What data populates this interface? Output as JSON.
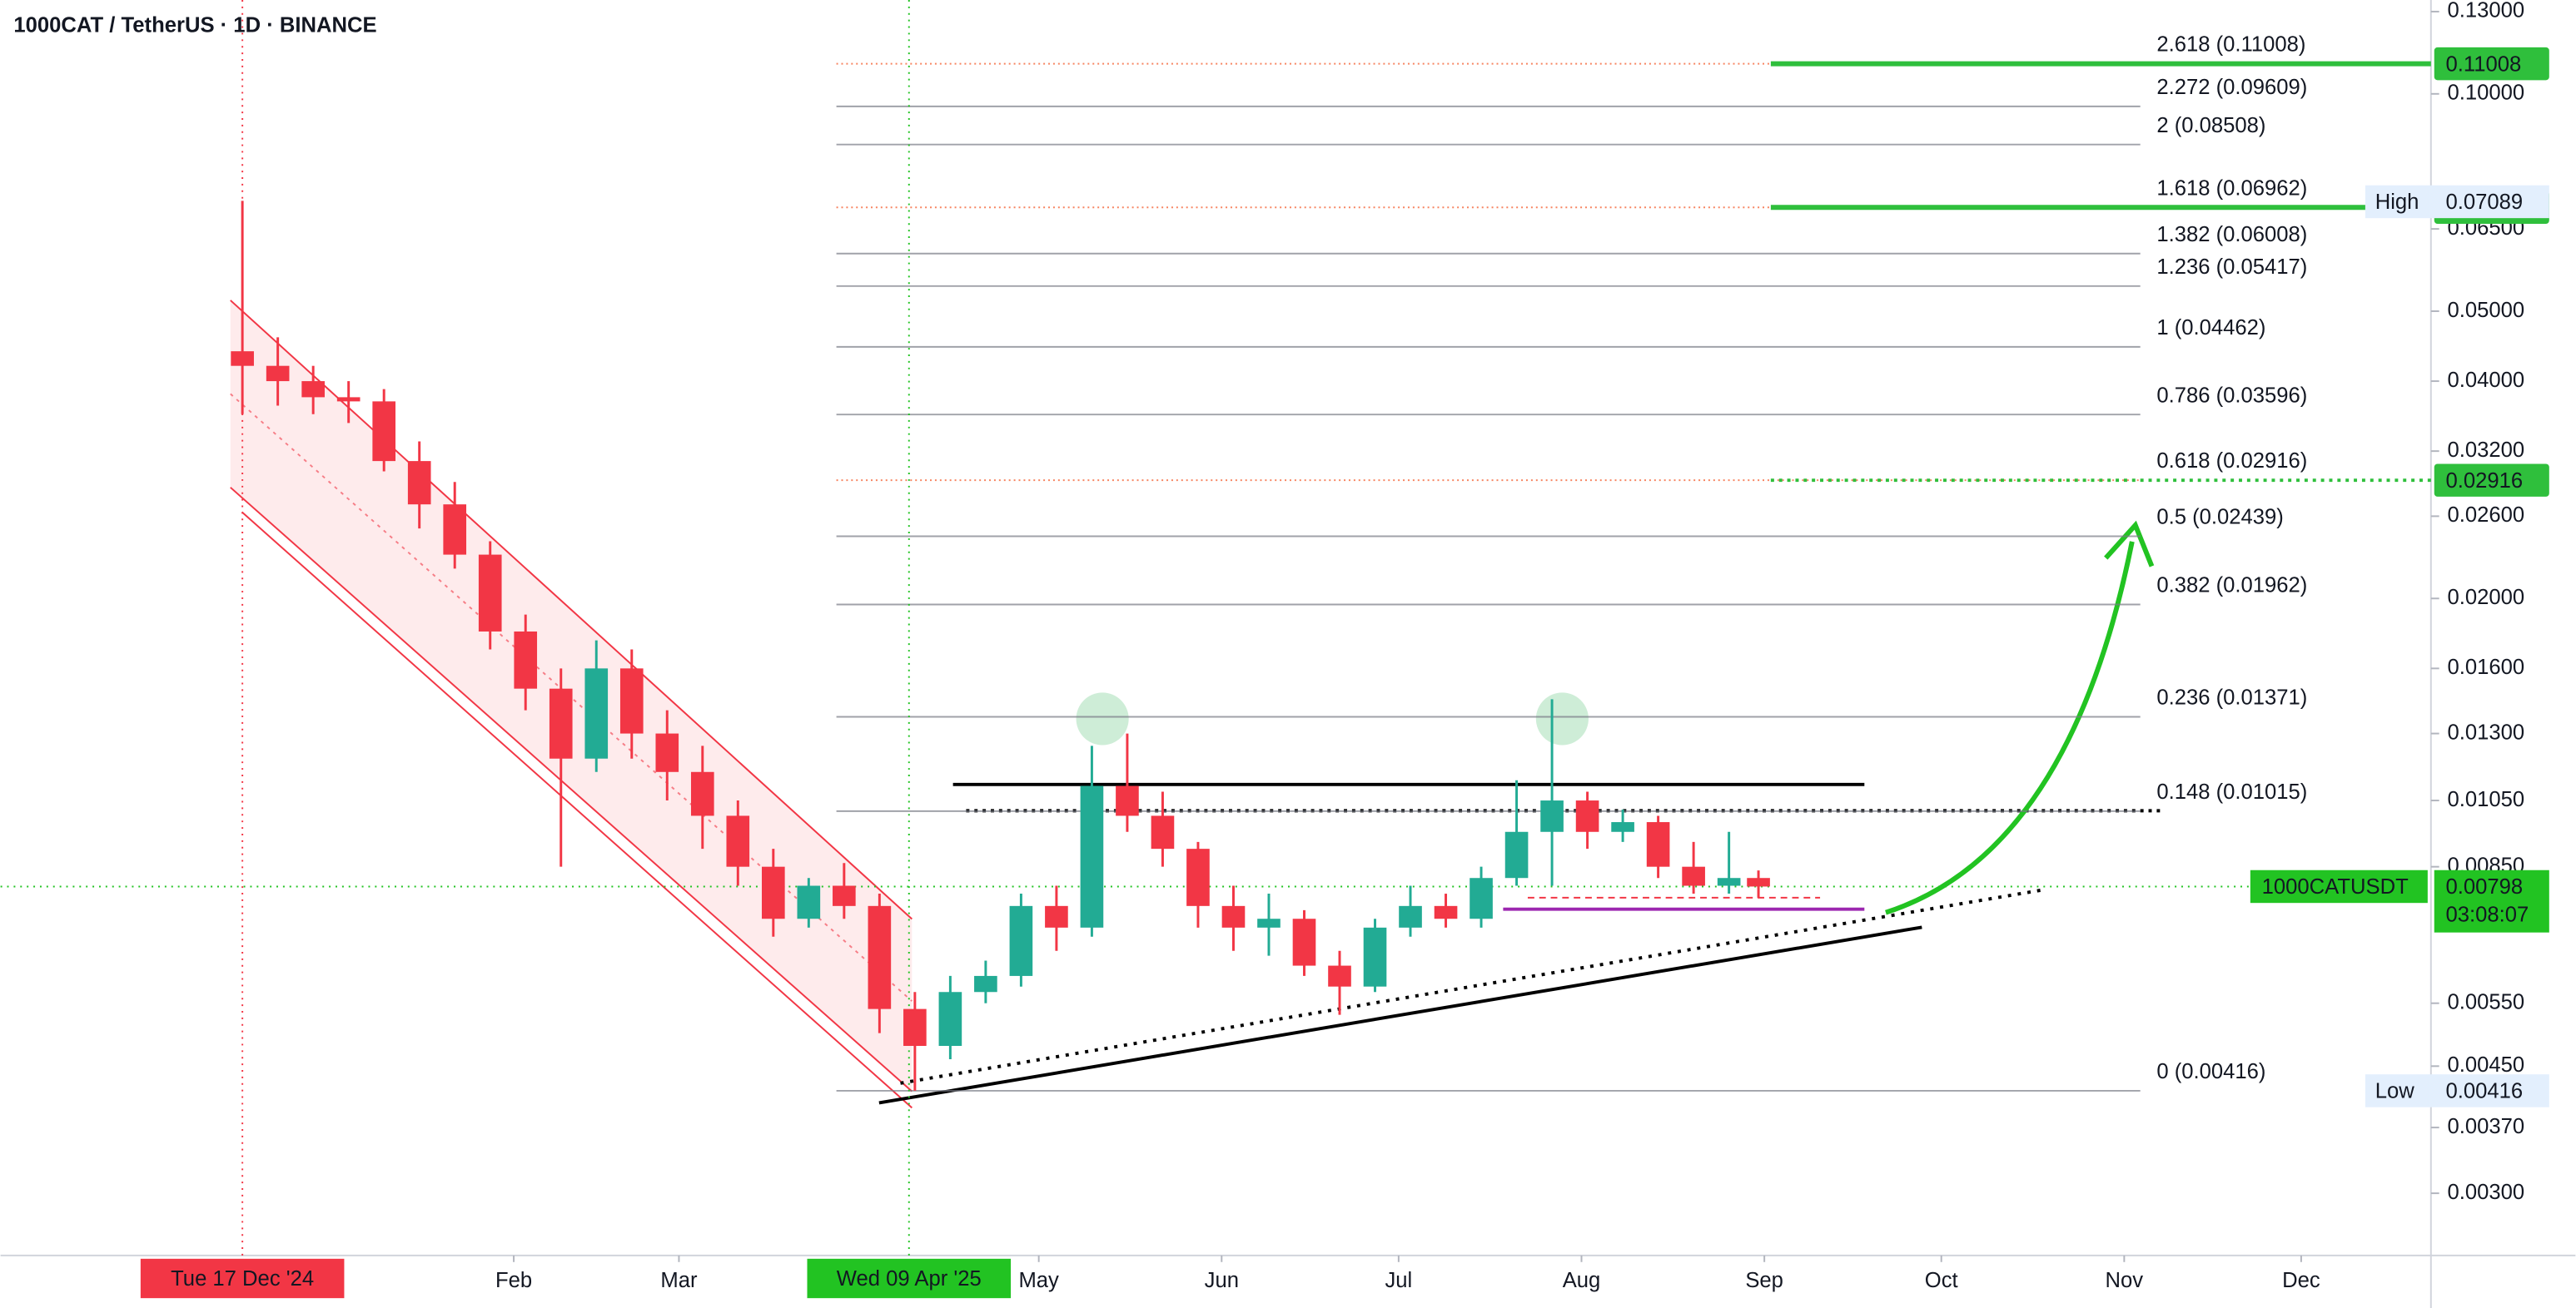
{
  "chart_data": {
    "type": "candlestick",
    "title": "1000CAT / TetherUS · 1D · BINANCE",
    "log_scale": true,
    "up_color": "#22ab94",
    "down_color": "#f23645",
    "xlim": [
      "2024-11-06",
      "2025-12-23"
    ],
    "ylim": [
      0.00246,
      0.1349
    ],
    "yticks": [
      {
        "value": 0.13,
        "label": "0.13000"
      },
      {
        "value": 0.1,
        "label": "0.10000"
      },
      {
        "value": 0.065,
        "label": "0.06500"
      },
      {
        "value": 0.05,
        "label": "0.05000"
      },
      {
        "value": 0.04,
        "label": "0.04000"
      },
      {
        "value": 0.032,
        "label": "0.03200"
      },
      {
        "value": 0.026,
        "label": "0.02600"
      },
      {
        "value": 0.02,
        "label": "0.02000"
      },
      {
        "value": 0.016,
        "label": "0.01600"
      },
      {
        "value": 0.013,
        "label": "0.01300"
      },
      {
        "value": 0.0105,
        "label": "0.01050"
      },
      {
        "value": 0.0085,
        "label": "0.00850"
      },
      {
        "value": 0.0055,
        "label": "0.00550"
      },
      {
        "value": 0.0045,
        "label": "0.00450"
      },
      {
        "value": 0.0037,
        "label": "0.00370"
      },
      {
        "value": 0.003,
        "label": "0.00300"
      }
    ],
    "xticks": [
      {
        "value": "2025-02-01",
        "label": "Feb"
      },
      {
        "value": "2025-03-01",
        "label": "Mar"
      },
      {
        "value": "2025-05-01",
        "label": "May"
      },
      {
        "value": "2025-06-01",
        "label": "Jun"
      },
      {
        "value": "2025-07-01",
        "label": "Jul"
      },
      {
        "value": "2025-08-01",
        "label": "Aug"
      },
      {
        "value": "2025-09-01",
        "label": "Sep"
      },
      {
        "value": "2025-10-01",
        "label": "Oct"
      },
      {
        "value": "2025-11-01",
        "label": "Nov"
      },
      {
        "value": "2025-12-01",
        "label": "Dec"
      }
    ],
    "x": [
      "2024-12-17",
      "2024-12-23",
      "2024-12-29",
      "2025-01-04",
      "2025-01-10",
      "2025-01-16",
      "2025-01-22",
      "2025-01-28",
      "2025-02-03",
      "2025-02-09",
      "2025-02-15",
      "2025-02-21",
      "2025-02-27",
      "2025-03-05",
      "2025-03-11",
      "2025-03-17",
      "2025-03-23",
      "2025-03-29",
      "2025-04-04",
      "2025-04-10",
      "2025-04-16",
      "2025-04-22",
      "2025-04-28",
      "2025-05-04",
      "2025-05-10",
      "2025-05-16",
      "2025-05-22",
      "2025-05-28",
      "2025-06-03",
      "2025-06-09",
      "2025-06-15",
      "2025-06-21",
      "2025-06-27",
      "2025-07-03",
      "2025-07-09",
      "2025-07-15",
      "2025-07-21",
      "2025-07-27",
      "2025-08-02",
      "2025-08-08",
      "2025-08-14",
      "2025-08-20",
      "2025-08-26",
      "2025-08-31"
    ],
    "open": [
      0.044,
      0.042,
      0.04,
      0.038,
      0.0375,
      0.031,
      0.027,
      0.023,
      0.018,
      0.015,
      0.012,
      0.016,
      0.013,
      0.0115,
      0.01,
      0.0085,
      0.0072,
      0.008,
      0.0075,
      0.0054,
      0.0048,
      0.0057,
      0.006,
      0.0075,
      0.007,
      0.011,
      0.01,
      0.009,
      0.0075,
      0.007,
      0.0072,
      0.0062,
      0.0058,
      0.007,
      0.0075,
      0.0072,
      0.0082,
      0.0095,
      0.0105,
      0.0095,
      0.0098,
      0.0085,
      0.008,
      0.0082
    ],
    "high": [
      0.0711,
      0.046,
      0.042,
      0.04,
      0.039,
      0.033,
      0.029,
      0.024,
      0.019,
      0.016,
      0.0175,
      0.017,
      0.014,
      0.0125,
      0.0105,
      0.009,
      0.0082,
      0.0086,
      0.0078,
      0.0057,
      0.006,
      0.0063,
      0.0078,
      0.008,
      0.0125,
      0.013,
      0.0108,
      0.0092,
      0.008,
      0.0078,
      0.0074,
      0.0065,
      0.0072,
      0.008,
      0.0078,
      0.0085,
      0.0112,
      0.0145,
      0.0108,
      0.0102,
      0.01,
      0.0092,
      0.0095,
      0.0084
    ],
    "low": [
      0.036,
      0.037,
      0.036,
      0.035,
      0.03,
      0.025,
      0.022,
      0.017,
      0.014,
      0.0085,
      0.0115,
      0.012,
      0.0105,
      0.009,
      0.008,
      0.0068,
      0.007,
      0.0072,
      0.005,
      0.00416,
      0.0046,
      0.0055,
      0.0058,
      0.0065,
      0.0068,
      0.0095,
      0.0085,
      0.007,
      0.0065,
      0.0064,
      0.006,
      0.0053,
      0.0057,
      0.0068,
      0.007,
      0.007,
      0.008,
      0.008,
      0.009,
      0.0092,
      0.0082,
      0.0078,
      0.0078,
      0.0077
    ],
    "close": [
      0.042,
      0.04,
      0.038,
      0.0375,
      0.031,
      0.027,
      0.023,
      0.018,
      0.015,
      0.012,
      0.016,
      0.013,
      0.0115,
      0.01,
      0.0085,
      0.0072,
      0.008,
      0.0075,
      0.0054,
      0.0048,
      0.0057,
      0.006,
      0.0075,
      0.007,
      0.011,
      0.01,
      0.009,
      0.0075,
      0.007,
      0.0072,
      0.0062,
      0.0058,
      0.007,
      0.0075,
      0.0072,
      0.0082,
      0.0095,
      0.0105,
      0.0095,
      0.0098,
      0.0085,
      0.008,
      0.0082,
      0.00798
    ],
    "fib_levels": [
      {
        "value": 0.11008,
        "label": "2.618 (0.11008)",
        "color": "#f4511e"
      },
      {
        "value": 0.09609,
        "label": "2.272 (0.09609)",
        "color": "#787b86"
      },
      {
        "value": 0.08508,
        "label": "2 (0.08508)",
        "color": "#787b86"
      },
      {
        "value": 0.06962,
        "label": "1.618 (0.06962)",
        "color": "#f4511e"
      },
      {
        "value": 0.06008,
        "label": "1.382 (0.06008)",
        "color": "#787b86"
      },
      {
        "value": 0.05417,
        "label": "1.236 (0.05417)",
        "color": "#787b86"
      },
      {
        "value": 0.04462,
        "label": "1 (0.04462)",
        "color": "#787b86"
      },
      {
        "value": 0.03596,
        "label": "0.786 (0.03596)",
        "color": "#787b86"
      },
      {
        "value": 0.02916,
        "label": "0.618 (0.02916)",
        "color": "#f4511e"
      },
      {
        "value": 0.02439,
        "label": "0.5 (0.02439)",
        "color": "#787b86"
      },
      {
        "value": 0.01962,
        "label": "0.382 (0.01962)",
        "color": "#787b86"
      },
      {
        "value": 0.01371,
        "label": "0.236 (0.01371)",
        "color": "#787b86"
      },
      {
        "value": 0.01015,
        "label": "0.148 (0.01015)",
        "color": "#787b86"
      },
      {
        "value": 0.00416,
        "label": "0 (0.00416)",
        "color": "#787b86"
      }
    ],
    "target_lines": [
      {
        "value": 0.11008,
        "color": "#2fbf3c"
      },
      {
        "value": 0.06962,
        "color": "#2fbf3c"
      },
      {
        "value": 0.02916,
        "color": "#2fbf3c"
      }
    ],
    "high_tag": {
      "name": "High",
      "value": 0.07089
    },
    "low_tag": {
      "name": "Low",
      "value": 0.00416
    },
    "last_price": {
      "name": "1000CATUSDT",
      "value": 0.00798,
      "countdown": "03:08:07",
      "color": "#22c322"
    },
    "crosshair_tags": [
      {
        "date": "2024-12-17",
        "label": "Tue 17 Dec '24",
        "color": "#f23645"
      },
      {
        "date": "2025-04-09",
        "label": "Wed 09 Apr '25",
        "color": "#22c322"
      }
    ]
  }
}
